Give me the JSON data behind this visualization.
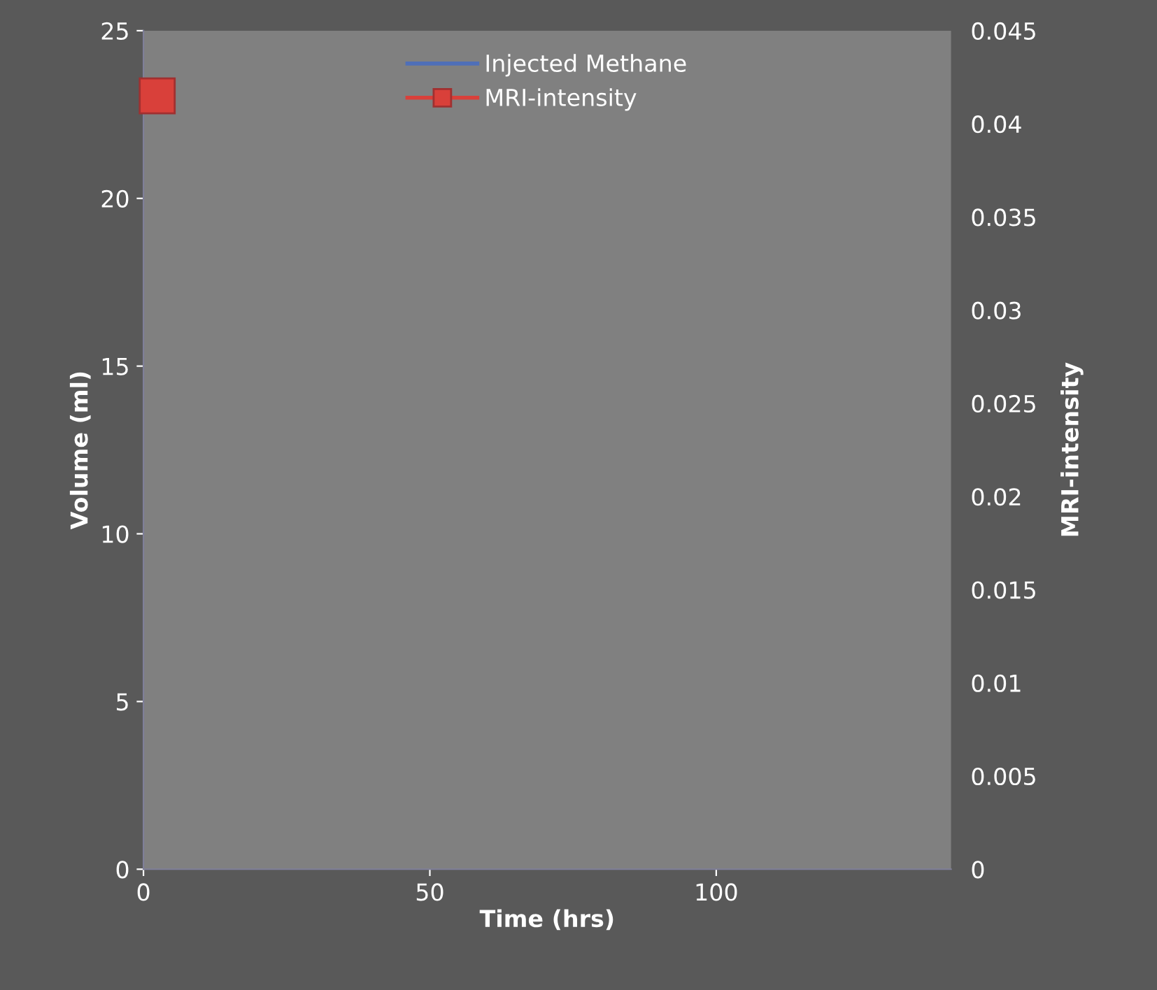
{
  "chart_data": {
    "type": "line",
    "xlabel": "Time (hrs)",
    "ylabel": "Volume (ml)",
    "y2label": "MRI-intensity",
    "xlim": [
      0,
      141
    ],
    "xticks": [
      0,
      50,
      100
    ],
    "ylim": [
      0,
      25
    ],
    "yticks": [
      0,
      5,
      10,
      15,
      20,
      25
    ],
    "y2lim": [
      0,
      0.045
    ],
    "y2ticks": [
      0,
      0.005,
      0.01,
      0.015,
      0.02,
      0.025,
      0.03,
      0.035,
      0.04,
      0.045
    ],
    "legend": "top",
    "grid": false,
    "series": [
      {
        "name": "Injected Methane",
        "color": "#4f6fb8",
        "marker": "none",
        "values": [
          null
        ]
      },
      {
        "name": "MRI-intensity",
        "color": "#d9403a",
        "marker": "square",
        "axis": "y2",
        "x": [
          2.4
        ],
        "values": [
          0.0415
        ]
      }
    ]
  }
}
